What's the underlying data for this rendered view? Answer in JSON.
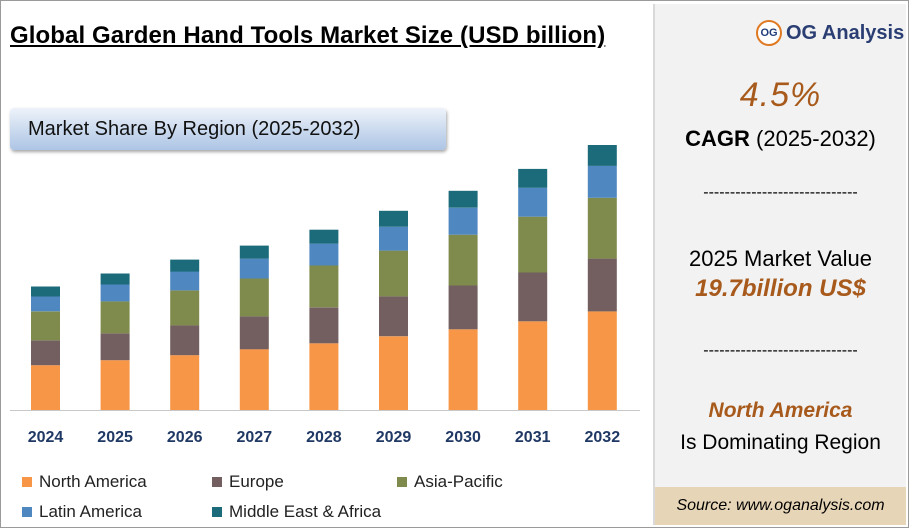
{
  "title": "Global Garden Hand Tools Market Size (USD billion)",
  "banner": "Market Share By Region (2025-2032)",
  "brand": {
    "logo_text": "OG",
    "name": "OG Analysis"
  },
  "sidebar": {
    "cagr_value": "4.5%",
    "cagr_label": "CAGR",
    "cagr_period": "(2025-2032)",
    "divider": "-----------------------------",
    "market_value_label": "2025 Market Value",
    "market_value": "19.7billion US$",
    "dominating_region": "North America",
    "dominating_text": "Is Dominating Region",
    "source": "Source: www.oganalysis.com"
  },
  "colors": {
    "north_america": "#f79646",
    "europe": "#735f5f",
    "asia_pacific": "#7e8b4d",
    "latin_america": "#4f87c0",
    "middle_east_africa": "#1c6b7a",
    "accent": "#a75a1b"
  },
  "chart_data": {
    "type": "bar",
    "stacked": true,
    "categories": [
      "2024",
      "2025",
      "2026",
      "2027",
      "2028",
      "2029",
      "2030",
      "2031",
      "2032"
    ],
    "series": [
      {
        "name": "North America",
        "color": "#f79646",
        "values": [
          45,
          50,
          55,
          61,
          67,
          74,
          81,
          89,
          99
        ]
      },
      {
        "name": "Europe",
        "color": "#735f5f",
        "values": [
          25,
          27,
          30,
          33,
          36,
          40,
          44,
          49,
          53
        ]
      },
      {
        "name": "Asia-Pacific",
        "color": "#7e8b4d",
        "values": [
          29,
          32,
          35,
          38,
          42,
          46,
          51,
          56,
          61
        ]
      },
      {
        "name": "Latin America",
        "color": "#4f87c0",
        "values": [
          15,
          17,
          19,
          20,
          22,
          24,
          27,
          29,
          32
        ]
      },
      {
        "name": "Middle East & Africa",
        "color": "#1c6b7a",
        "values": [
          10,
          11,
          12,
          13,
          14,
          16,
          17,
          19,
          21
        ]
      }
    ],
    "legend": [
      "North America",
      "Europe",
      "Asia-Pacific",
      "Latin America",
      "Middle East & Africa"
    ],
    "legend_position": "bottom",
    "yaxis_visible": false,
    "grid": false
  }
}
